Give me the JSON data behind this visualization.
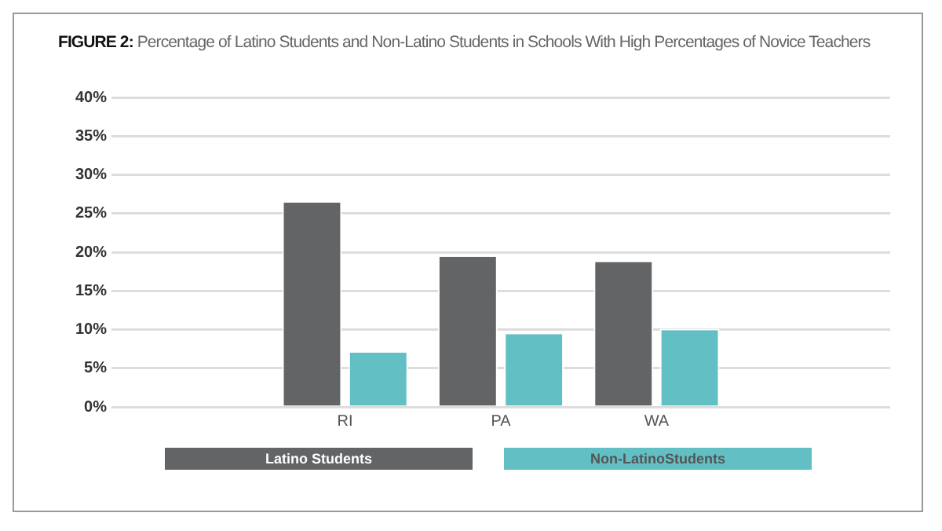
{
  "chart_data": {
    "type": "bar",
    "title": "FIGURE 2:",
    "subtitle": "Percentage of Latino Students and Non-Latino Students in Schools With High Percentages of Novice Teachers",
    "categories": [
      null,
      "RI",
      "PA",
      "WA",
      null
    ],
    "series": [
      {
        "name": "Latino Students",
        "color": "#636466",
        "values": [
          null,
          26.6,
          19.6,
          18.9,
          null
        ]
      },
      {
        "name": "Non-LatinoStudents",
        "color": "#62c0c5",
        "values": [
          null,
          7.2,
          9.6,
          10.1,
          null
        ]
      }
    ],
    "ylim": [
      0,
      40
    ],
    "yticks": [
      {
        "value": 0,
        "label": "0%"
      },
      {
        "value": 5,
        "label": "5%"
      },
      {
        "value": 10,
        "label": "10%"
      },
      {
        "value": 15,
        "label": "15%"
      },
      {
        "value": 20,
        "label": "20%"
      },
      {
        "value": 25,
        "label": "25%"
      },
      {
        "value": 30,
        "label": "30%"
      },
      {
        "value": 35,
        "label": "35%"
      },
      {
        "value": 40,
        "label": "40%"
      }
    ],
    "grid": "y",
    "legend": "bottom"
  }
}
